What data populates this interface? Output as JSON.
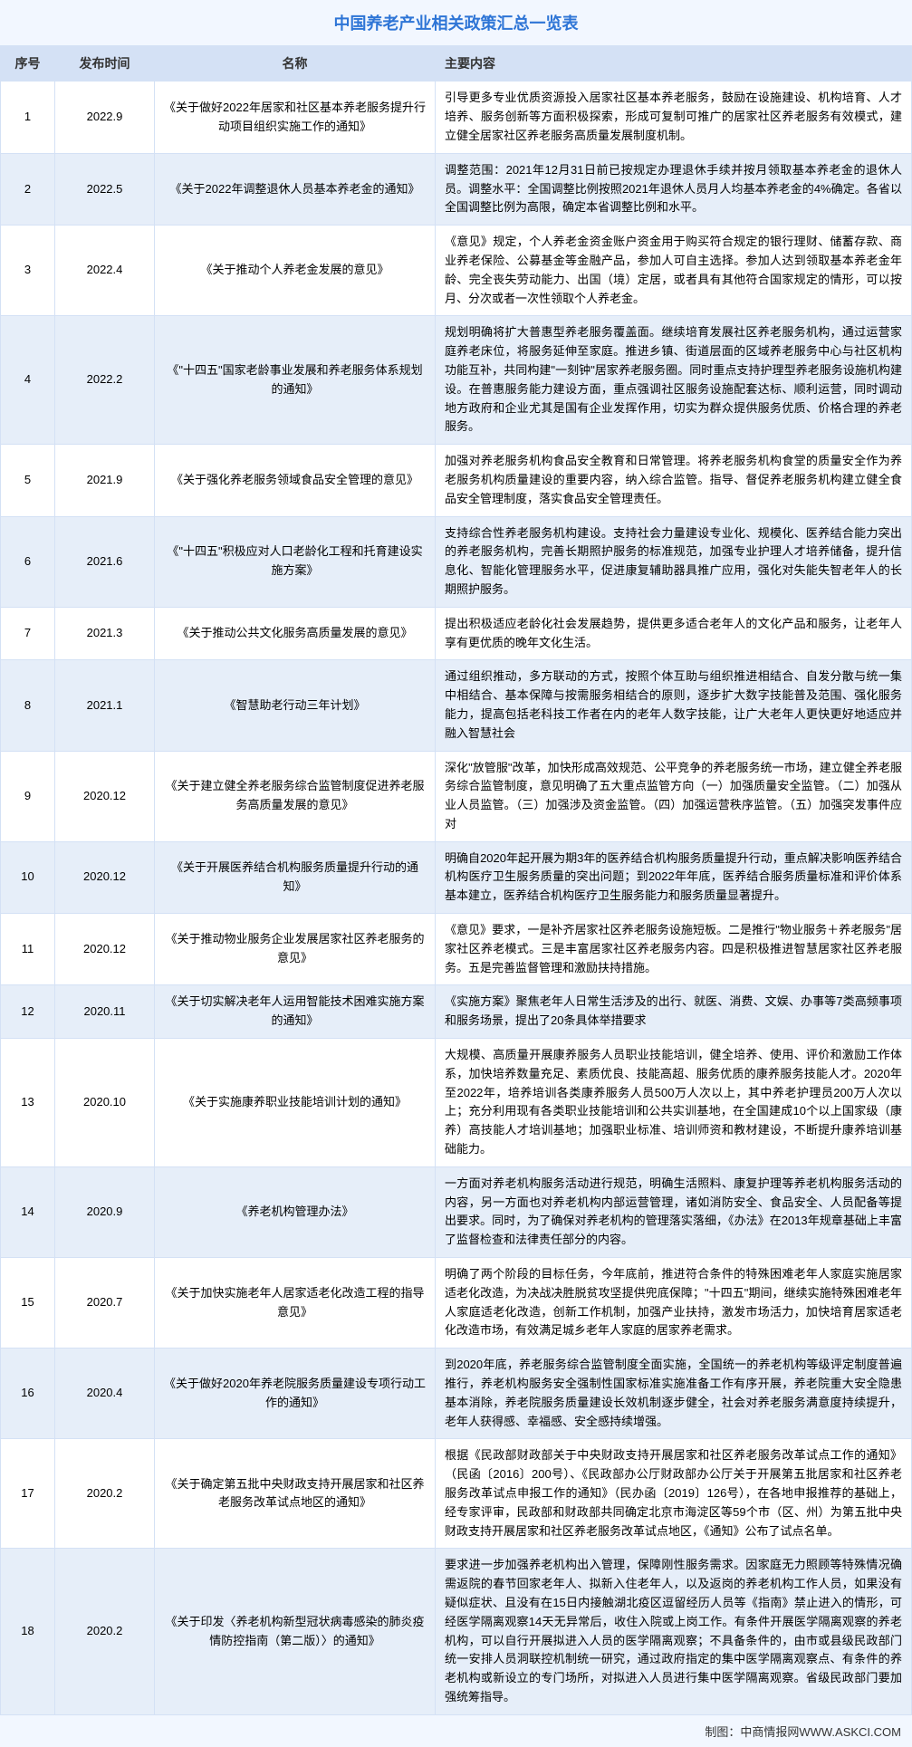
{
  "title": "中国养老产业相关政策汇总一览表",
  "title_color": "#2e75d6",
  "headers": {
    "seq": "序号",
    "date": "发布时间",
    "name": "名称",
    "content": "主要内容"
  },
  "footer": "制图：中商情报网WWW.ASKCI.COM",
  "colors": {
    "header_bg": "#d4e1f5",
    "row_odd": "#ffffff",
    "row_even": "#e6eef9",
    "border": "#d4e1f5",
    "container_bg": "#f2f7ff"
  },
  "rows": [
    {
      "seq": "1",
      "date": "2022.9",
      "name": "《关于做好2022年居家和社区基本养老服务提升行动项目组织实施工作的通知》",
      "content": "引导更多专业优质资源投入居家社区基本养老服务，鼓励在设施建设、机构培育、人才培养、服务创新等方面积极探索，形成可复制可推广的居家社区养老服务有效模式，建立健全居家社区养老服务高质量发展制度机制。"
    },
    {
      "seq": "2",
      "date": "2022.5",
      "name": "《关于2022年调整退休人员基本养老金的通知》",
      "content": "调整范围：2021年12月31日前已按规定办理退休手续并按月领取基本养老金的退休人员。调整水平：全国调整比例按照2021年退休人员月人均基本养老金的4%确定。各省以全国调整比例为高限，确定本省调整比例和水平。"
    },
    {
      "seq": "3",
      "date": "2022.4",
      "name": "《关于推动个人养老金发展的意见》",
      "content": "《意见》规定，个人养老金资金账户资金用于购买符合规定的银行理财、储蓄存款、商业养老保险、公募基金等金融产品，参加人可自主选择。参加人达到领取基本养老金年龄、完全丧失劳动能力、出国（境）定居，或者具有其他符合国家规定的情形，可以按月、分次或者一次性领取个人养老金。"
    },
    {
      "seq": "4",
      "date": "2022.2",
      "name": "《\"十四五\"国家老龄事业发展和养老服务体系规划的通知》",
      "content": "规划明确将扩大普惠型养老服务覆盖面。继续培育发展社区养老服务机构，通过运营家庭养老床位，将服务延伸至家庭。推进乡镇、街道层面的区域养老服务中心与社区机构功能互补，共同构建\"一刻钟\"居家养老服务圈。同时重点支持护理型养老服务设施机构建设。在普惠服务能力建设方面，重点强调社区服务设施配套达标、顺利运营，同时调动地方政府和企业尤其是国有企业发挥作用，切实为群众提供服务优质、价格合理的养老服务。"
    },
    {
      "seq": "5",
      "date": "2021.9",
      "name": "《关于强化养老服务领域食品安全管理的意见》",
      "content": "加强对养老服务机构食品安全教育和日常管理。将养老服务机构食堂的质量安全作为养老服务机构质量建设的重要内容，纳入综合监管。指导、督促养老服务机构建立健全食品安全管理制度，落实食品安全管理责任。"
    },
    {
      "seq": "6",
      "date": "2021.6",
      "name": "《\"十四五\"积极应对人口老龄化工程和托育建设实施方案》",
      "content": "支持综合性养老服务机构建设。支持社会力量建设专业化、规模化、医养结合能力突出的养老服务机构，完善长期照护服务的标准规范，加强专业护理人才培养储备，提升信息化、智能化管理服务水平，促进康复辅助器具推广应用，强化对失能失智老年人的长期照护服务。"
    },
    {
      "seq": "7",
      "date": "2021.3",
      "name": "《关于推动公共文化服务高质量发展的意见》",
      "content": "提出积极适应老龄化社会发展趋势，提供更多适合老年人的文化产品和服务，让老年人享有更优质的晚年文化生活。"
    },
    {
      "seq": "8",
      "date": "2021.1",
      "name": "《智慧助老行动三年计划》",
      "content": "通过组织推动，多方联动的方式，按照个体互助与组织推进相结合、自发分散与统一集中相结合、基本保障与按需服务相结合的原则，逐步扩大数字技能普及范围、强化服务能力，提高包括老科技工作者在内的老年人数字技能，让广大老年人更快更好地适应并融入智慧社会"
    },
    {
      "seq": "9",
      "date": "2020.12",
      "name": "《关于建立健全养老服务综合监管制度促进养老服务高质量发展的意见》",
      "content": "深化\"放管服\"改革，加快形成高效规范、公平竞争的养老服务统一市场，建立健全养老服务综合监管制度，意见明确了五大重点监管方向（一）加强质量安全监管。（二）加强从业人员监管。（三）加强涉及资金监管。（四）加强运营秩序监管。（五）加强突发事件应对"
    },
    {
      "seq": "10",
      "date": "2020.12",
      "name": "《关于开展医养结合机构服务质量提升行动的通知》",
      "content": "明确自2020年起开展为期3年的医养结合机构服务质量提升行动，重点解决影响医养结合机构医疗卫生服务质量的突出问题；到2022年年底，医养结合服务质量标准和评价体系基本建立，医养结合机构医疗卫生服务能力和服务质量显著提升。"
    },
    {
      "seq": "11",
      "date": "2020.12",
      "name": "《关于推动物业服务企业发展居家社区养老服务的意见》",
      "content": "《意见》要求，一是补齐居家社区养老服务设施短板。二是推行\"物业服务＋养老服务\"居家社区养老模式。三是丰富居家社区养老服务内容。四是积极推进智慧居家社区养老服务。五是完善监督管理和激励扶持措施。"
    },
    {
      "seq": "12",
      "date": "2020.11",
      "name": "《关于切实解决老年人运用智能技术困难实施方案的通知》",
      "content": "《实施方案》聚焦老年人日常生活涉及的出行、就医、消费、文娱、办事等7类高频事项和服务场景，提出了20条具体举措要求"
    },
    {
      "seq": "13",
      "date": "2020.10",
      "name": "《关于实施康养职业技能培训计划的通知》",
      "content": "大规模、高质量开展康养服务人员职业技能培训，健全培养、使用、评价和激励工作体系，加快培养数量充足、素质优良、技能高超、服务优质的康养服务技能人才。2020年至2022年，培养培训各类康养服务人员500万人次以上，其中养老护理员200万人次以上；充分利用现有各类职业技能培训和公共实训基地，在全国建成10个以上国家级（康养）高技能人才培训基地；加强职业标准、培训师资和教材建设，不断提升康养培训基础能力。"
    },
    {
      "seq": "14",
      "date": "2020.9",
      "name": "《养老机构管理办法》",
      "content": "一方面对养老机构服务活动进行规范，明确生活照料、康复护理等养老机构服务活动的内容，另一方面也对养老机构内部运营管理，诸如消防安全、食品安全、人员配备等提出要求。同时，为了确保对养老机构的管理落实落细，《办法》在2013年规章基础上丰富了监督检查和法律责任部分的内容。"
    },
    {
      "seq": "15",
      "date": "2020.7",
      "name": "《关于加快实施老年人居家适老化改造工程的指导意见》",
      "content": "明确了两个阶段的目标任务，今年底前，推进符合条件的特殊困难老年人家庭实施居家适老化改造，为决战决胜脱贫攻坚提供兜底保障；\"十四五\"期间，继续实施特殊困难老年人家庭适老化改造，创新工作机制，加强产业扶持，激发市场活力，加快培育居家适老化改造市场，有效满足城乡老年人家庭的居家养老需求。"
    },
    {
      "seq": "16",
      "date": "2020.4",
      "name": "《关于做好2020年养老院服务质量建设专项行动工作的通知》",
      "content": "到2020年底，养老服务综合监管制度全面实施，全国统一的养老机构等级评定制度普遍推行，养老机构服务安全强制性国家标准实施准备工作有序开展，养老院重大安全隐患基本消除，养老院服务质量建设长效机制逐步健全，社会对养老服务满意度持续提升，老年人获得感、幸福感、安全感持续增强。"
    },
    {
      "seq": "17",
      "date": "2020.2",
      "name": "《关于确定第五批中央财政支持开展居家和社区养老服务改革试点地区的通知》",
      "content": "根据《民政部财政部关于中央财政支持开展居家和社区养老服务改革试点工作的通知》（民函〔2016〕200号）、《民政部办公厅财政部办公厅关于开展第五批居家和社区养老服务改革试点申报工作的通知》（民办函〔2019〕126号），在各地申报推荐的基础上，经专家评审，民政部和财政部共同确定北京市海淀区等59个市（区、州）为第五批中央财政支持开展居家和社区养老服务改革试点地区，《通知》公布了试点名单。"
    },
    {
      "seq": "18",
      "date": "2020.2",
      "name": "《关于印发〈养老机构新型冠状病毒感染的肺炎疫情防控指南（第二版）〉的通知》",
      "content": "要求进一步加强养老机构出入管理，保障刚性服务需求。因家庭无力照顾等特殊情况确需返院的春节回家老年人、拟新入住老年人，以及返岗的养老机构工作人员，如果没有疑似症状、且没有在15日内接触湖北疫区逗留经历人员等《指南》禁止进入的情形，可经医学隔离观察14天无异常后，收住入院或上岗工作。有条件开展医学隔离观察的养老机构，可以自行开展拟进入人员的医学隔离观察；不具备条件的，由市或县级民政部门统一安排人员洞联控机制统一研究，通过政府指定的集中医学隔离观察点、有条件的养老机构或新设立的专门场所，对拟进入人员进行集中医学隔离观察。省级民政部门要加强统筹指导。"
    }
  ]
}
